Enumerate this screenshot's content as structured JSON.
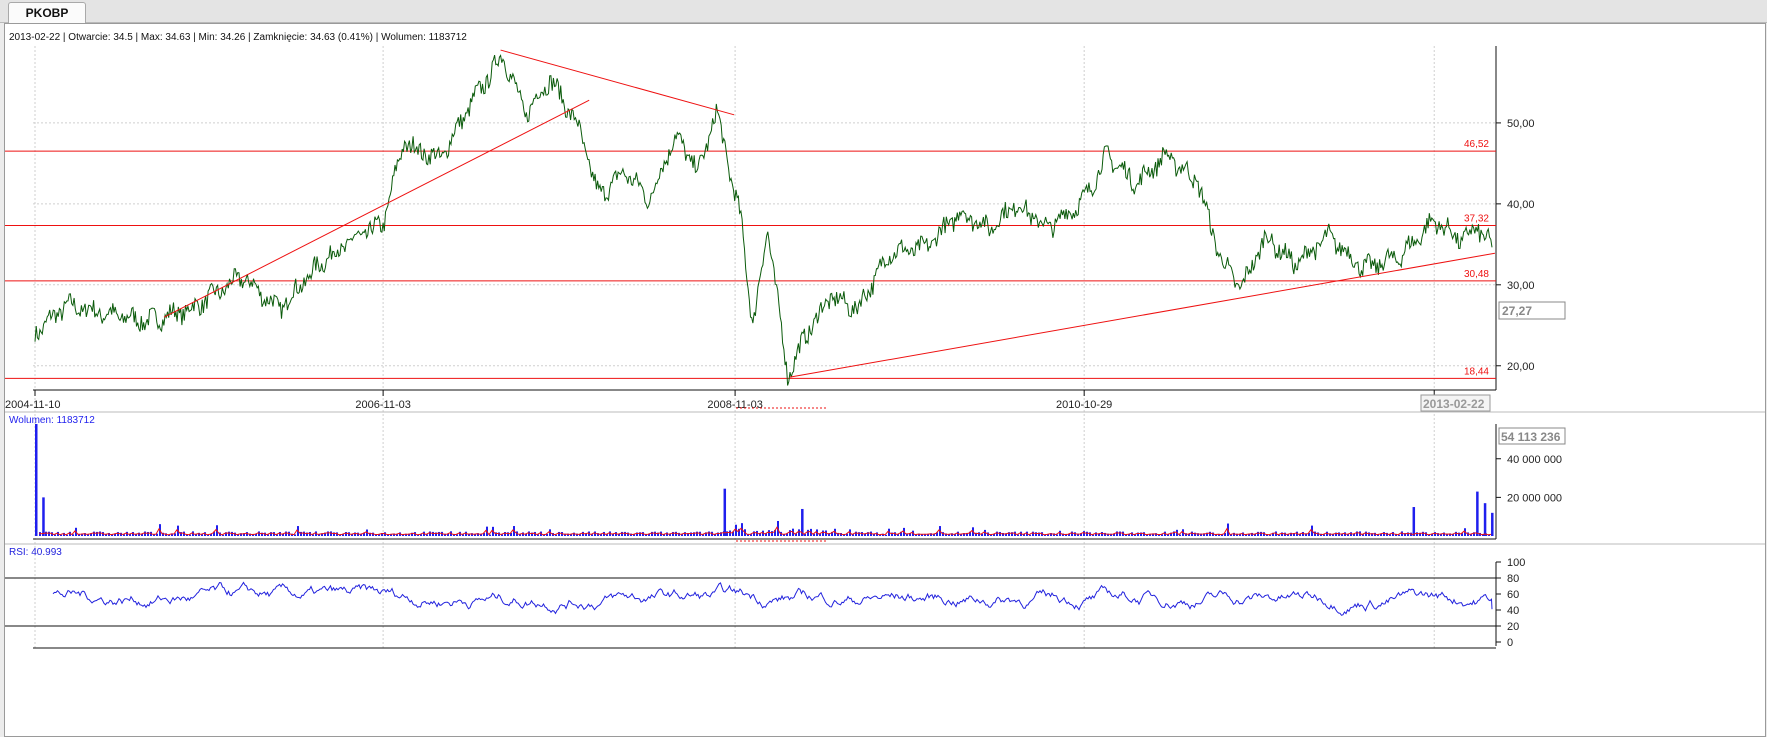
{
  "tab": {
    "label": "PKOBP"
  },
  "info_line": "2013-02-22 | Otwarcie: 34.5 | Max: 34.63 | Min: 34.26 | Zamknięcie: 34.63 (0.41%)  | Wolumen: 1183712",
  "colors": {
    "price": "#0b5b0b",
    "level": "#ee1111",
    "volume": "#1f1fee",
    "volume_avg": "#ee1111",
    "rsi": "#2222dd",
    "grid": "#cfcfcf",
    "axis": "#111111"
  },
  "price_panel": {
    "x_ticks": [
      "2004-11-10",
      "2006-11-03",
      "2008-11-03",
      "2010-10-29",
      "201"
    ],
    "cursor_date": "2013-02-22",
    "y_ticks": [
      "50,00",
      "40,00",
      "30,00",
      "20,00"
    ],
    "cursor_price": "27,27",
    "levels": [
      {
        "value": 46.52,
        "label": "46,52"
      },
      {
        "value": 37.32,
        "label": "37,32"
      },
      {
        "value": 30.48,
        "label": "30,48"
      },
      {
        "value": 18.44,
        "label": "18,44"
      }
    ]
  },
  "volume_panel": {
    "label": "Wolumen: 1183712",
    "cursor_value": "54 113 236",
    "y_ticks": [
      "40 000 000",
      "20 000 000"
    ]
  },
  "rsi_panel": {
    "label": "RSI: 40.993",
    "y_ticks": [
      "100",
      "80",
      "60",
      "40",
      "20",
      "0"
    ]
  },
  "chart_data": {
    "type": "line",
    "ylim": [
      17.5,
      59.5
    ],
    "x_range": [
      "2004-11-10",
      "2013-02-22"
    ],
    "price_path": [
      [
        "2004-11-10",
        24.0
      ],
      [
        "2005-01-15",
        27.5
      ],
      [
        "2005-04-01",
        26.5
      ],
      [
        "2005-07-01",
        25.5
      ],
      [
        "2005-10-01",
        27.0
      ],
      [
        "2006-01-15",
        31.0
      ],
      [
        "2006-04-01",
        27.0
      ],
      [
        "2006-07-01",
        33.0
      ],
      [
        "2006-09-15",
        36.0
      ],
      [
        "2006-11-03",
        37.5
      ],
      [
        "2006-12-15",
        47.5
      ],
      [
        "2007-03-01",
        45.5
      ],
      [
        "2007-05-01",
        52.0
      ],
      [
        "2007-07-10",
        58.5
      ],
      [
        "2007-08-25",
        51.0
      ],
      [
        "2007-10-15",
        55.5
      ],
      [
        "2007-12-10",
        50.0
      ],
      [
        "2008-01-25",
        41.0
      ],
      [
        "2008-03-20",
        44.0
      ],
      [
        "2008-05-10",
        40.5
      ],
      [
        "2008-07-01",
        48.5
      ],
      [
        "2008-08-20",
        44.0
      ],
      [
        "2008-09-25",
        51.5
      ],
      [
        "2008-11-15",
        38.0
      ],
      [
        "2008-12-10",
        25.0
      ],
      [
        "2009-01-10",
        37.0
      ],
      [
        "2009-02-20",
        18.8
      ],
      [
        "2009-04-01",
        24.0
      ],
      [
        "2009-05-20",
        28.5
      ],
      [
        "2009-07-15",
        27.0
      ],
      [
        "2009-09-20",
        34.0
      ],
      [
        "2009-12-01",
        34.5
      ],
      [
        "2010-02-15",
        39.0
      ],
      [
        "2010-04-15",
        37.0
      ],
      [
        "2010-06-10",
        40.0
      ],
      [
        "2010-08-15",
        37.0
      ],
      [
        "2010-10-29",
        40.5
      ],
      [
        "2010-12-15",
        46.0
      ],
      [
        "2011-02-15",
        42.5
      ],
      [
        "2011-04-15",
        46.0
      ],
      [
        "2011-06-20",
        43.0
      ],
      [
        "2011-08-10",
        33.0
      ],
      [
        "2011-09-20",
        29.5
      ],
      [
        "2011-11-10",
        36.0
      ],
      [
        "2012-01-10",
        32.5
      ],
      [
        "2012-03-20",
        36.0
      ],
      [
        "2012-06-01",
        32.0
      ],
      [
        "2012-08-15",
        33.5
      ],
      [
        "2012-10-25",
        38.0
      ],
      [
        "2012-12-20",
        35.5
      ],
      [
        "2013-01-25",
        37.0
      ],
      [
        "2013-02-22",
        34.63
      ]
    ],
    "trendlines": [
      {
        "from": [
          "2005-08-05",
          26.0
        ],
        "to": [
          "2008-01-05",
          52.8
        ]
      },
      {
        "from": [
          "2007-07-05",
          59.0
        ],
        "to": [
          "2008-11-01",
          51.0
        ]
      },
      {
        "from": [
          "2009-02-25",
          18.6
        ],
        "to": [
          "2013-02-28",
          33.9
        ]
      }
    ],
    "volume_spikes": [
      [
        "2004-11-10",
        58000000
      ],
      [
        "2004-11-25",
        20000000
      ],
      [
        "2008-10-10",
        24500000
      ],
      [
        "2009-03-20",
        14000000
      ],
      [
        "2012-09-10",
        15000000
      ],
      [
        "2013-01-20",
        23000000
      ],
      [
        "2013-02-05",
        17000000
      ],
      [
        "2013-02-20",
        12000000
      ]
    ],
    "volume_max": 58000000,
    "rsi_levels": [
      80,
      20
    ],
    "rsi_last": 40.993
  }
}
